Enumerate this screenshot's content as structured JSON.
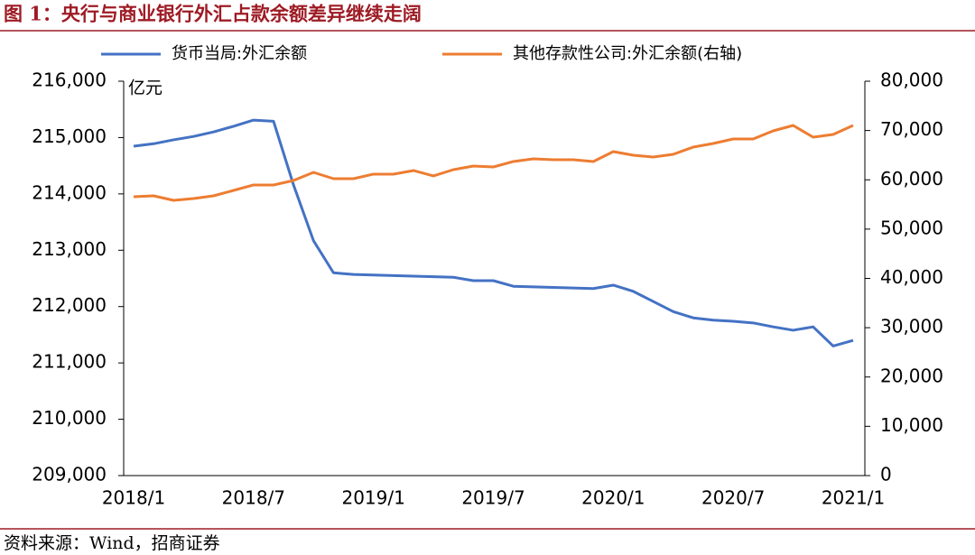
{
  "chart_data": {
    "type": "line",
    "title": "图 1：央行与商业银行外汇占款余额差异继续走阔",
    "source": "资料来源：Wind，招商证券",
    "y_unit": "亿元",
    "categories": [
      "2018/1",
      null,
      null,
      null,
      null,
      null,
      "2018/7",
      null,
      null,
      null,
      null,
      null,
      "2019/1",
      null,
      null,
      null,
      null,
      null,
      "2019/7",
      null,
      null,
      null,
      null,
      null,
      "2020/1",
      null,
      null,
      null,
      null,
      null,
      "2020/7",
      null,
      null,
      null,
      null,
      null,
      "2021/1"
    ],
    "series": [
      {
        "name": "货币当局:外汇余额",
        "color": "#4472c4",
        "axis": "y",
        "values": [
          214846,
          214890,
          214960,
          215020,
          215100,
          215200,
          215310,
          215290,
          214160,
          213170,
          212600,
          212570,
          212560,
          212550,
          212540,
          212530,
          212520,
          212460,
          212460,
          212360,
          212350,
          212340,
          212330,
          212320,
          212380,
          212270,
          212090,
          211910,
          211800,
          211760,
          211740,
          211710,
          211640,
          211580,
          211640,
          211300,
          211400
        ]
      },
      {
        "name": "其他存款性公司:外汇余额(右轴)",
        "color": "#ed7d31",
        "axis": "y2",
        "values": [
          56570,
          56750,
          55840,
          56200,
          56750,
          57850,
          58950,
          58950,
          59860,
          61510,
          60230,
          60230,
          61150,
          61150,
          61880,
          60780,
          62060,
          62790,
          62610,
          63710,
          64260,
          64070,
          64070,
          63710,
          65720,
          64990,
          64620,
          65170,
          66640,
          67370,
          68280,
          68280,
          69930,
          71030,
          68650,
          69200,
          71030
        ]
      }
    ],
    "ylim": [
      209000,
      216000
    ],
    "yticks": [
      {
        "value": 209000,
        "label": "209,000"
      },
      {
        "value": 210000,
        "label": "210,000"
      },
      {
        "value": 211000,
        "label": "211,000"
      },
      {
        "value": 212000,
        "label": "212,000"
      },
      {
        "value": 213000,
        "label": "213,000"
      },
      {
        "value": 214000,
        "label": "214,000"
      },
      {
        "value": 215000,
        "label": "215,000"
      },
      {
        "value": 216000,
        "label": "216,000"
      }
    ],
    "y2lim": [
      0,
      80000
    ],
    "y2ticks": [
      0,
      {
        "value": 10000,
        "label": "10,000"
      },
      {
        "value": 20000,
        "label": "20,000"
      },
      {
        "value": 30000,
        "label": "30,000"
      },
      {
        "value": 40000,
        "label": "40,000"
      },
      {
        "value": 50000,
        "label": "50,000"
      },
      {
        "value": 60000,
        "label": "60,000"
      },
      {
        "value": 70000,
        "label": "70,000"
      },
      {
        "value": 80000,
        "label": "80,000"
      }
    ],
    "legend": "top",
    "grid": false
  }
}
